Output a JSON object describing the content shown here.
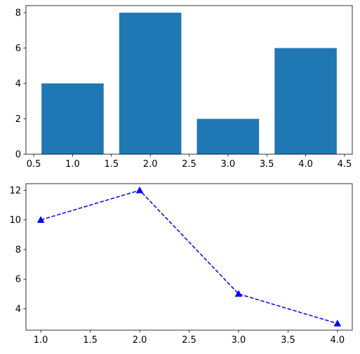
{
  "chart_data": [
    {
      "type": "bar",
      "x": [
        1.0,
        2.0,
        3.0,
        4.0
      ],
      "values": [
        4,
        8,
        2,
        6
      ],
      "bar_width": 0.8,
      "color": "#1f77b4",
      "xlim": [
        0.4,
        4.6
      ],
      "ylim": [
        0,
        8.4
      ],
      "xticks": [
        0.5,
        1.0,
        1.5,
        2.0,
        2.5,
        3.0,
        3.5,
        4.0,
        4.5
      ],
      "xtick_labels": [
        "0.5",
        "1.0",
        "1.5",
        "2.0",
        "2.5",
        "3.0",
        "3.5",
        "4.0",
        "4.5"
      ],
      "yticks": [
        0,
        2,
        4,
        6,
        8
      ],
      "ytick_labels": [
        "0",
        "2",
        "4",
        "6",
        "8"
      ],
      "title": "",
      "xlabel": "",
      "ylabel": "",
      "grid": false
    },
    {
      "type": "line",
      "x": [
        1,
        2,
        3,
        4
      ],
      "y": [
        10,
        12,
        5,
        3
      ],
      "color": "#0000ff",
      "line_style": "dashed",
      "marker": "triangle-up",
      "xlim": [
        0.85,
        4.15
      ],
      "ylim": [
        2.55,
        12.45
      ],
      "xticks": [
        1.0,
        1.5,
        2.0,
        2.5,
        3.0,
        3.5,
        4.0
      ],
      "xtick_labels": [
        "1.0",
        "1.5",
        "2.0",
        "2.5",
        "3.0",
        "3.5",
        "4.0"
      ],
      "yticks": [
        4,
        6,
        8,
        10,
        12
      ],
      "ytick_labels": [
        "4",
        "6",
        "8",
        "10",
        "12"
      ],
      "title": "",
      "xlabel": "",
      "ylabel": "",
      "grid": false
    }
  ]
}
